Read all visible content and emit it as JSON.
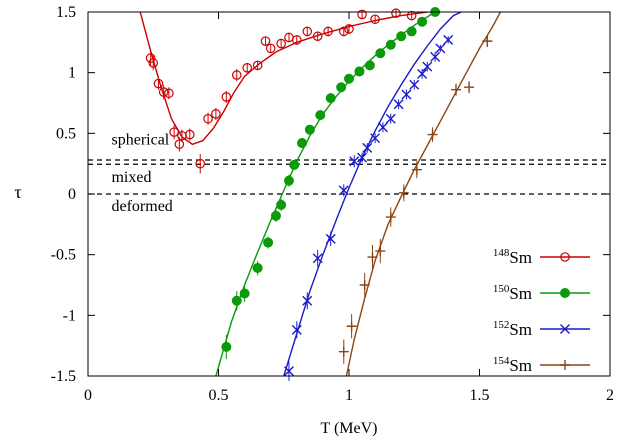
{
  "chart_data": {
    "type": "scatter",
    "title": "",
    "xlabel": "T (MeV)",
    "ylabel": "τ",
    "xlim": [
      0,
      2
    ],
    "ylim": [
      -1.5,
      1.5
    ],
    "x_ticks": [
      0,
      0.5,
      1,
      1.5,
      2
    ],
    "x_tick_labels": [
      "0",
      "0.5",
      "1",
      "1.5",
      "2"
    ],
    "y_ticks": [
      -1.5,
      -1,
      -0.5,
      0,
      0.5,
      1,
      1.5
    ],
    "y_tick_labels": [
      "-1.5",
      "-1",
      "-0.5",
      "0",
      "0.5",
      "1",
      "1.5"
    ],
    "grid": false,
    "legend_position": "bottom-right",
    "hlines": [
      {
        "y": 0,
        "style": "dashed"
      },
      {
        "y": 0.245,
        "style": "dashed"
      },
      {
        "y": 0.28,
        "style": "dashed"
      }
    ],
    "annotations": [
      {
        "text": "spherical",
        "x": 0.09,
        "y": 0.41
      },
      {
        "text": "mixed",
        "x": 0.09,
        "y": 0.1
      },
      {
        "text": "deformed",
        "x": 0.09,
        "y": -0.14
      }
    ],
    "series": [
      {
        "name": "148Sm",
        "mass": "148",
        "element": "Sm",
        "color": "#cc0000",
        "marker": "open-circle",
        "points": [
          [
            0.24,
            1.12,
            0.06
          ],
          [
            0.25,
            1.08,
            0.06
          ],
          [
            0.27,
            0.91,
            0.05
          ],
          [
            0.29,
            0.84,
            0.06
          ],
          [
            0.31,
            0.83,
            0.05
          ],
          [
            0.33,
            0.51,
            0.06
          ],
          [
            0.35,
            0.41,
            0.06
          ],
          [
            0.36,
            0.48,
            0.05
          ],
          [
            0.39,
            0.49,
            0.05
          ],
          [
            0.43,
            0.25,
            0.08
          ],
          [
            0.46,
            0.62,
            0.05
          ],
          [
            0.49,
            0.66,
            0.05
          ],
          [
            0.53,
            0.8,
            0.05
          ],
          [
            0.57,
            0.98,
            0.05
          ],
          [
            0.61,
            1.04,
            0.04
          ],
          [
            0.65,
            1.06,
            0.04
          ],
          [
            0.68,
            1.26,
            0.04
          ],
          [
            0.7,
            1.2,
            0.04
          ],
          [
            0.74,
            1.24,
            0.04
          ],
          [
            0.77,
            1.29,
            0.04
          ],
          [
            0.8,
            1.27,
            0.04
          ],
          [
            0.84,
            1.34,
            0.04
          ],
          [
            0.88,
            1.3,
            0.04
          ],
          [
            0.92,
            1.34,
            0.04
          ],
          [
            0.98,
            1.34,
            0.04
          ],
          [
            1,
            1.36,
            0.04
          ],
          [
            1.05,
            1.48,
            0.03
          ],
          [
            1.1,
            1.44,
            0.03
          ],
          [
            1.18,
            1.49,
            0.03
          ],
          [
            1.24,
            1.47,
            0.03
          ]
        ],
        "curve": [
          [
            0.2,
            1.5
          ],
          [
            0.24,
            1.18
          ],
          [
            0.28,
            0.88
          ],
          [
            0.32,
            0.62
          ],
          [
            0.36,
            0.47
          ],
          [
            0.4,
            0.41
          ],
          [
            0.44,
            0.44
          ],
          [
            0.48,
            0.54
          ],
          [
            0.52,
            0.68
          ],
          [
            0.56,
            0.84
          ],
          [
            0.6,
            0.97
          ],
          [
            0.66,
            1.08
          ],
          [
            0.72,
            1.17
          ],
          [
            0.8,
            1.25
          ],
          [
            0.9,
            1.32
          ],
          [
            1,
            1.38
          ],
          [
            1.1,
            1.43
          ],
          [
            1.2,
            1.47
          ],
          [
            1.3,
            1.5
          ]
        ]
      },
      {
        "name": "150Sm",
        "mass": "150",
        "element": "Sm",
        "color": "#0a9a0a",
        "marker": "filled-circle",
        "points": [
          [
            0.53,
            -1.26,
            0.1
          ],
          [
            0.57,
            -0.88,
            0.08
          ],
          [
            0.6,
            -0.82,
            0.07
          ],
          [
            0.65,
            -0.61,
            0.06
          ],
          [
            0.69,
            -0.4,
            0.05
          ],
          [
            0.72,
            -0.18,
            0.05
          ],
          [
            0.74,
            -0.09,
            0.05
          ],
          [
            0.77,
            0.11,
            0.05
          ],
          [
            0.79,
            0.24,
            0.04
          ],
          [
            0.82,
            0.42,
            0.04
          ],
          [
            0.85,
            0.53,
            0.04
          ],
          [
            0.89,
            0.65,
            0.04
          ],
          [
            0.93,
            0.79,
            0.04
          ],
          [
            0.97,
            0.88,
            0.04
          ],
          [
            1,
            0.95,
            0.04
          ],
          [
            1.04,
            1.01,
            0.04
          ],
          [
            1.08,
            1.06,
            0.03
          ],
          [
            1.12,
            1.16,
            0.03
          ],
          [
            1.16,
            1.23,
            0.03
          ],
          [
            1.2,
            1.3,
            0.03
          ],
          [
            1.24,
            1.34,
            0.03
          ],
          [
            1.28,
            1.42,
            0.03
          ],
          [
            1.33,
            1.5,
            0.03
          ]
        ],
        "curve": [
          [
            0.49,
            -1.5
          ],
          [
            0.55,
            -1.05
          ],
          [
            0.6,
            -0.75
          ],
          [
            0.65,
            -0.48
          ],
          [
            0.7,
            -0.22
          ],
          [
            0.75,
            0.03
          ],
          [
            0.8,
            0.27
          ],
          [
            0.85,
            0.48
          ],
          [
            0.9,
            0.66
          ],
          [
            0.95,
            0.8
          ],
          [
            1,
            0.93
          ],
          [
            1.05,
            1.04
          ],
          [
            1.1,
            1.14
          ],
          [
            1.15,
            1.23
          ],
          [
            1.2,
            1.31
          ],
          [
            1.25,
            1.39
          ],
          [
            1.3,
            1.46
          ],
          [
            1.33,
            1.5
          ]
        ]
      },
      {
        "name": "152Sm",
        "mass": "152",
        "element": "Sm",
        "color": "#1a1acc",
        "marker": "cross",
        "points": [
          [
            0.77,
            -1.46,
            0.08
          ],
          [
            0.8,
            -1.12,
            0.07
          ],
          [
            0.84,
            -0.88,
            0.07
          ],
          [
            0.88,
            -0.53,
            0.07
          ],
          [
            0.93,
            -0.37,
            0.06
          ],
          [
            0.98,
            0.03,
            0.05
          ],
          [
            1.02,
            0.27,
            0.05
          ],
          [
            1.05,
            0.3,
            0.04
          ],
          [
            1.07,
            0.38,
            0.04
          ],
          [
            1.1,
            0.46,
            0.04
          ],
          [
            1.13,
            0.55,
            0.04
          ],
          [
            1.16,
            0.62,
            0.04
          ],
          [
            1.19,
            0.74,
            0.04
          ],
          [
            1.22,
            0.82,
            0.04
          ],
          [
            1.25,
            0.9,
            0.04
          ],
          [
            1.28,
            0.99,
            0.04
          ],
          [
            1.3,
            1.05,
            0.04
          ],
          [
            1.33,
            1.13,
            0.04
          ],
          [
            1.35,
            1.2,
            0.03
          ],
          [
            1.38,
            1.27,
            0.03
          ]
        ],
        "curve": [
          [
            0.75,
            -1.5
          ],
          [
            0.8,
            -1.15
          ],
          [
            0.85,
            -0.8
          ],
          [
            0.9,
            -0.5
          ],
          [
            0.95,
            -0.22
          ],
          [
            1,
            0.05
          ],
          [
            1.05,
            0.3
          ],
          [
            1.1,
            0.52
          ],
          [
            1.15,
            0.72
          ],
          [
            1.2,
            0.9
          ],
          [
            1.25,
            1.07
          ],
          [
            1.3,
            1.22
          ],
          [
            1.35,
            1.36
          ],
          [
            1.4,
            1.47
          ],
          [
            1.43,
            1.5
          ]
        ]
      },
      {
        "name": "154Sm",
        "mass": "154",
        "element": "Sm",
        "color": "#8b4513",
        "marker": "plus",
        "points": [
          [
            0.98,
            -1.3,
            0.1
          ],
          [
            1.01,
            -1.09,
            0.1
          ],
          [
            1.06,
            -0.75,
            0.1
          ],
          [
            1.09,
            -0.52,
            0.1
          ],
          [
            1.12,
            -0.47,
            0.1
          ],
          [
            1.16,
            -0.19,
            0.08
          ],
          [
            1.21,
            0.01,
            0.07
          ],
          [
            1.26,
            0.2,
            0.07
          ],
          [
            1.32,
            0.49,
            0.06
          ],
          [
            1.41,
            0.86,
            0.05
          ],
          [
            1.46,
            0.88,
            0.05
          ],
          [
            1.53,
            1.26,
            0.05
          ]
        ],
        "curve": [
          [
            0.99,
            -1.5
          ],
          [
            1.02,
            -1.2
          ],
          [
            1.06,
            -0.86
          ],
          [
            1.1,
            -0.55
          ],
          [
            1.15,
            -0.25
          ],
          [
            1.2,
            -0.02
          ],
          [
            1.25,
            0.2
          ],
          [
            1.3,
            0.4
          ],
          [
            1.35,
            0.6
          ],
          [
            1.4,
            0.8
          ],
          [
            1.45,
            1
          ],
          [
            1.5,
            1.2
          ],
          [
            1.55,
            1.38
          ],
          [
            1.58,
            1.5
          ]
        ]
      }
    ]
  }
}
